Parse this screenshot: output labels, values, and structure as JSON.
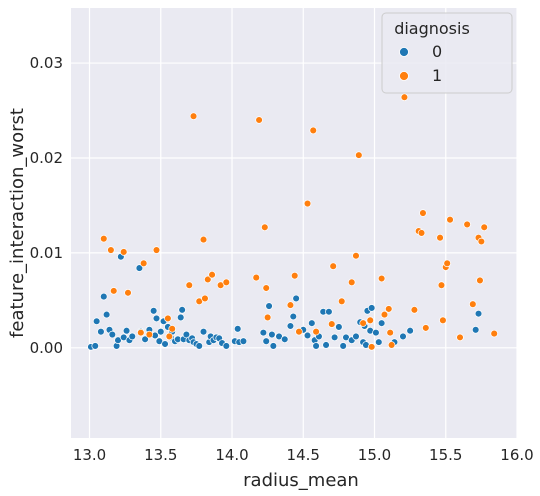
{
  "chart_data": {
    "type": "scatter",
    "xlabel": "radius_mean",
    "ylabel": "feature_interaction_worst",
    "xlim": [
      12.87,
      16.0
    ],
    "ylim": [
      -0.0095,
      0.0358
    ],
    "x_ticks": [
      "13.0",
      "13.5",
      "14.0",
      "14.5",
      "15.0",
      "15.5",
      "16.0"
    ],
    "x_tick_values": [
      13.0,
      13.5,
      14.0,
      14.5,
      15.0,
      15.5,
      16.0
    ],
    "y_ticks": [
      "0.00",
      "0.01",
      "0.02",
      "0.03"
    ],
    "y_tick_values": [
      0.0,
      0.01,
      0.02,
      0.03
    ],
    "grid": true,
    "background": "#EAEAF2",
    "legend": {
      "title": "diagnosis",
      "placement": "top-right",
      "entries": [
        {
          "label": "0",
          "color": "#1F77B4"
        },
        {
          "label": "1",
          "color": "#FF7F0E"
        }
      ]
    },
    "series": [
      {
        "name": "0",
        "color": "#1F77B4",
        "points": [
          [
            13.01,
            0.0001
          ],
          [
            13.04,
            0.0002
          ],
          [
            13.05,
            0.0028
          ],
          [
            13.08,
            0.0017
          ],
          [
            13.1,
            0.0054
          ],
          [
            13.12,
            0.0035
          ],
          [
            13.14,
            0.0019
          ],
          [
            13.16,
            0.0014
          ],
          [
            13.19,
            0.0002
          ],
          [
            13.2,
            0.0008
          ],
          [
            13.22,
            0.0096
          ],
          [
            13.24,
            0.0011
          ],
          [
            13.26,
            0.0018
          ],
          [
            13.28,
            0.0008
          ],
          [
            13.3,
            0.0012
          ],
          [
            13.35,
            0.0084
          ],
          [
            13.36,
            0.0017
          ],
          [
            13.39,
            0.0009
          ],
          [
            13.42,
            0.0019
          ],
          [
            13.45,
            0.0039
          ],
          [
            13.46,
            0.0013
          ],
          [
            13.47,
            0.0031
          ],
          [
            13.49,
            0.0007
          ],
          [
            13.5,
            0.0017
          ],
          [
            13.52,
            0.0028
          ],
          [
            13.53,
            0.0004
          ],
          [
            13.55,
            0.0022
          ],
          [
            13.57,
            0.0011
          ],
          [
            13.58,
            0.0017
          ],
          [
            13.6,
            0.0007
          ],
          [
            13.62,
            0.0009
          ],
          [
            13.64,
            0.0032
          ],
          [
            13.65,
            0.004
          ],
          [
            13.66,
            0.0009
          ],
          [
            13.68,
            0.0014
          ],
          [
            13.7,
            0.0008
          ],
          [
            13.72,
            0.001
          ],
          [
            13.73,
            0.0006
          ],
          [
            13.75,
            0.0004
          ],
          [
            13.77,
            0.0002
          ],
          [
            13.8,
            0.0017
          ],
          [
            13.84,
            0.0006
          ],
          [
            13.85,
            0.0012
          ],
          [
            13.87,
            0.0008
          ],
          [
            13.89,
            0.0011
          ],
          [
            13.91,
            0.001
          ],
          [
            13.93,
            0.0005
          ],
          [
            13.96,
            0.0002
          ],
          [
            14.02,
            0.0007
          ],
          [
            14.04,
            0.002
          ],
          [
            14.05,
            0.0006
          ],
          [
            14.08,
            0.0007
          ],
          [
            14.22,
            0.0016
          ],
          [
            14.24,
            0.0007
          ],
          [
            14.26,
            0.0044
          ],
          [
            14.28,
            0.0014
          ],
          [
            14.29,
            0.0002
          ],
          [
            14.33,
            0.0012
          ],
          [
            14.37,
            0.0009
          ],
          [
            14.41,
            0.0023
          ],
          [
            14.43,
            0.0033
          ],
          [
            14.45,
            0.0052
          ],
          [
            14.47,
            0.0017
          ],
          [
            14.5,
            0.0019
          ],
          [
            14.53,
            0.0013
          ],
          [
            14.56,
            0.0026
          ],
          [
            14.58,
            0.0008
          ],
          [
            14.59,
            0.0002
          ],
          [
            14.61,
            0.0012
          ],
          [
            14.64,
            0.0038
          ],
          [
            14.66,
            0.0003
          ],
          [
            14.68,
            0.0038
          ],
          [
            14.72,
            0.0011
          ],
          [
            14.75,
            0.0022
          ],
          [
            14.78,
            0.0002
          ],
          [
            14.8,
            0.0011
          ],
          [
            14.84,
            0.0008
          ],
          [
            14.87,
            0.0012
          ],
          [
            14.9,
            0.0027
          ],
          [
            14.92,
            0.0006
          ],
          [
            14.93,
            0.0023
          ],
          [
            14.94,
            0.0003
          ],
          [
            14.95,
            0.0039
          ],
          [
            14.97,
            0.0018
          ],
          [
            14.98,
            0.0042
          ],
          [
            15.01,
            0.0016
          ],
          [
            15.03,
            0.0006
          ],
          [
            15.05,
            0.0026
          ],
          [
            15.14,
            0.0006
          ],
          [
            15.2,
            0.0012
          ],
          [
            15.25,
            0.0018
          ],
          [
            15.71,
            0.0019
          ],
          [
            15.73,
            0.0036
          ]
        ]
      },
      {
        "name": "1",
        "color": "#FF7F0E",
        "points": [
          [
            13.1,
            0.0115
          ],
          [
            13.15,
            0.0103
          ],
          [
            13.17,
            0.006
          ],
          [
            13.24,
            0.0101
          ],
          [
            13.27,
            0.0058
          ],
          [
            13.36,
            0.0016
          ],
          [
            13.38,
            0.0089
          ],
          [
            13.42,
            0.0014
          ],
          [
            13.47,
            0.0103
          ],
          [
            13.55,
            0.0031
          ],
          [
            13.56,
            0.0012
          ],
          [
            13.58,
            0.002
          ],
          [
            13.7,
            0.0066
          ],
          [
            13.73,
            0.0244
          ],
          [
            13.77,
            0.0049
          ],
          [
            13.8,
            0.0114
          ],
          [
            13.81,
            0.0052
          ],
          [
            13.83,
            0.0072
          ],
          [
            13.86,
            0.0077
          ],
          [
            13.92,
            0.0066
          ],
          [
            13.96,
            0.0069
          ],
          [
            14.17,
            0.0074
          ],
          [
            14.19,
            0.024
          ],
          [
            14.23,
            0.0127
          ],
          [
            14.24,
            0.0063
          ],
          [
            14.25,
            0.0032
          ],
          [
            14.41,
            0.0045
          ],
          [
            14.44,
            0.0076
          ],
          [
            14.47,
            0.0017
          ],
          [
            14.53,
            0.0152
          ],
          [
            14.57,
            0.0229
          ],
          [
            14.59,
            0.0017
          ],
          [
            14.7,
            0.0025
          ],
          [
            14.71,
            0.0086
          ],
          [
            14.77,
            0.0049
          ],
          [
            14.84,
            0.0069
          ],
          [
            14.87,
            0.0097
          ],
          [
            14.89,
            0.0203
          ],
          [
            14.92,
            0.0026
          ],
          [
            14.97,
            0.0029
          ],
          [
            14.98,
            0.0001
          ],
          [
            15.05,
            0.0073
          ],
          [
            15.07,
            0.0035
          ],
          [
            15.1,
            0.0041
          ],
          [
            15.11,
            0.0016
          ],
          [
            15.12,
            0.0003
          ],
          [
            15.21,
            0.0264
          ],
          [
            15.28,
            0.004
          ],
          [
            15.31,
            0.0123
          ],
          [
            15.33,
            0.0121
          ],
          [
            15.34,
            0.0142
          ],
          [
            15.36,
            0.0021
          ],
          [
            15.46,
            0.0116
          ],
          [
            15.47,
            0.0066
          ],
          [
            15.48,
            0.0029
          ],
          [
            15.5,
            0.0085
          ],
          [
            15.51,
            0.0089
          ],
          [
            15.53,
            0.0135
          ],
          [
            15.6,
            0.0011
          ],
          [
            15.65,
            0.013
          ],
          [
            15.69,
            0.0046
          ],
          [
            15.73,
            0.0116
          ],
          [
            15.74,
            0.0071
          ],
          [
            15.75,
            0.0112
          ],
          [
            15.77,
            0.0127
          ],
          [
            15.84,
            0.0015
          ]
        ]
      }
    ]
  }
}
